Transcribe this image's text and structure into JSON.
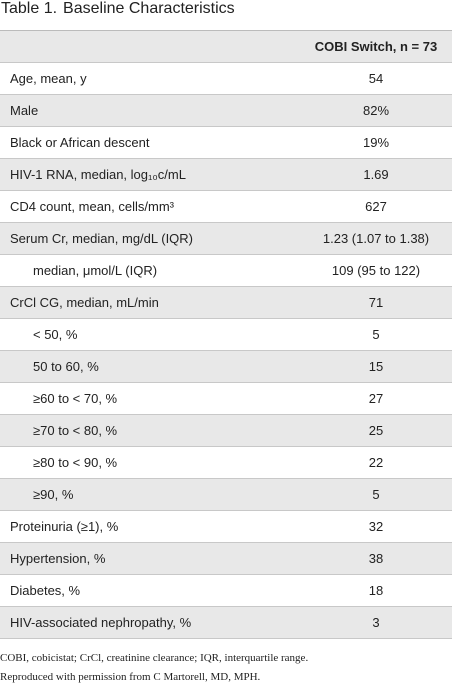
{
  "header": {
    "label": "Table 1.",
    "title": "Baseline Characteristics"
  },
  "table": {
    "column": "COBI Switch, n = 73",
    "rows": [
      {
        "label": "Age, mean, y",
        "value": "54"
      },
      {
        "label": "Male",
        "value": "82%"
      },
      {
        "label": "Black or African descent",
        "value": "19%"
      },
      {
        "label": "HIV-1 RNA, median, log₁₀c/mL",
        "value": "1.69"
      },
      {
        "label": "CD4 count, mean, cells/mm³",
        "value": "627"
      },
      {
        "label": "Serum Cr, median, mg/dL (IQR)",
        "value": "1.23 (1.07 to 1.38)",
        "sub": [
          {
            "label": "median, μmol/L (IQR)",
            "value": "109 (95 to 122)"
          }
        ]
      },
      {
        "label": "CrCl CG, median, mL/min",
        "value": "71",
        "sub": [
          {
            "label": "< 50, %",
            "value": "5"
          },
          {
            "label": "50 to 60, %",
            "value": "15"
          },
          {
            "label": "≥60 to < 70, %",
            "value": "27"
          },
          {
            "label": "≥70 to < 80, %",
            "value": "25"
          },
          {
            "label": "≥80 to < 90, %",
            "value": "22"
          },
          {
            "label": "≥90, %",
            "value": "5"
          }
        ]
      },
      {
        "label": "Proteinuria (≥1), %",
        "value": "32"
      },
      {
        "label": "Hypertension, %",
        "value": "38"
      },
      {
        "label": "Diabetes, %",
        "value": "18"
      },
      {
        "label": "HIV-associated nephropathy, %",
        "value": "3"
      }
    ]
  },
  "footnotes": [
    "COBI, cobicistat; CrCl, creatinine clearance; IQR, interquartile range.",
    "Reproduced with permission from C Martorell, MD, MPH."
  ]
}
